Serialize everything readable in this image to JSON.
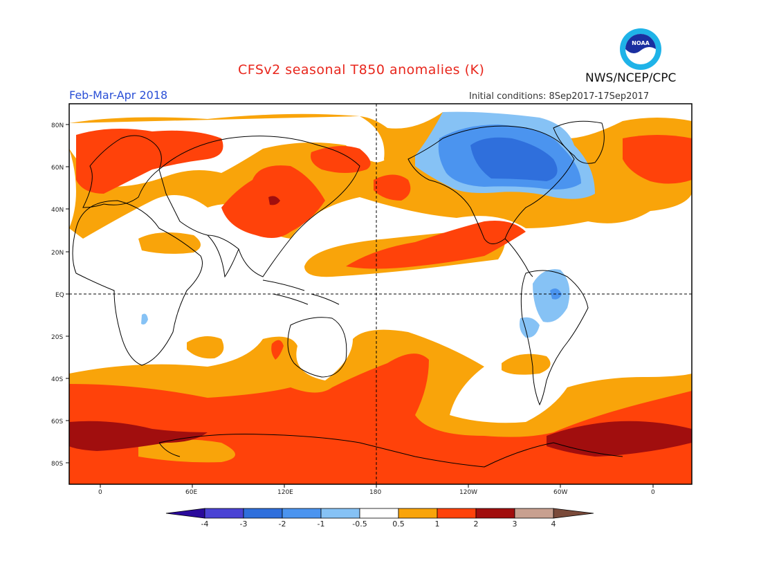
{
  "header": {
    "title": "CFSv2 seasonal T850 anomalies (K)",
    "period": "Feb-Mar-Apr 2018",
    "initial_conditions": "Initial conditions: 8Sep2017-17Sep2017",
    "agency": "NWS/NCEP/CPC",
    "logo_text": "NOAA"
  },
  "map": {
    "projection": "equirectangular",
    "lon_ticks": [
      "0",
      "60E",
      "120E",
      "180",
      "120W",
      "60W",
      "0"
    ],
    "lat_ticks": [
      "80N",
      "60N",
      "40N",
      "20N",
      "EQ",
      "20S",
      "40S",
      "60S",
      "80S"
    ],
    "lat_range": [
      -90,
      90
    ],
    "reference_lines": [
      "EQ",
      "180"
    ]
  },
  "colorbar": {
    "labels": [
      "-4",
      "-3",
      "-2",
      "-1",
      "-0.5",
      "0.5",
      "1",
      "2",
      "3",
      "4"
    ],
    "colors": [
      "#2a0a9b",
      "#4a42d4",
      "#2f6fdc",
      "#4b94ef",
      "#86c2f5",
      "#ffffff",
      "#f9a40a",
      "#ff420a",
      "#a10e0e",
      "#c8a090",
      "#7a4a3a"
    ],
    "units": "K"
  },
  "colors": {
    "c_m1": "#86c2f5",
    "c_m2": "#4b94ef",
    "c_m3": "#2f6fdc",
    "c_p05": "#f9a40a",
    "c_p1": "#ff420a",
    "c_p2": "#a10e0e"
  }
}
